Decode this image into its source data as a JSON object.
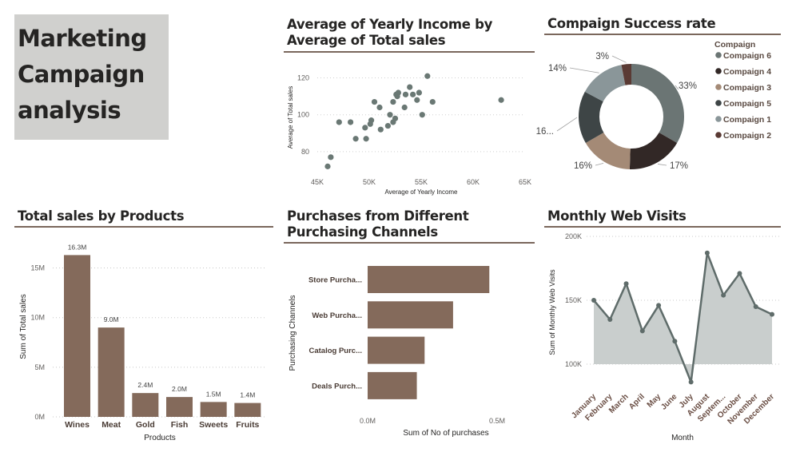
{
  "header": {
    "title": "Marketing Campaign analysis"
  },
  "colors": {
    "bar": "#846a5b",
    "scatter": "#6a7874",
    "area_fill": "#c9cecd",
    "area_line": "#5f6c6a",
    "rule": "#7a675c",
    "donut": [
      "#6b7574",
      "#322826",
      "#a48a76",
      "#3e4546",
      "#8a9699",
      "#5a3a34"
    ]
  },
  "visuals": {
    "income": {
      "title": "Average of Yearly Income by Average of Total sales"
    },
    "campaign": {
      "title": "Compaign Success rate"
    },
    "products": {
      "title": "Total sales by Products"
    },
    "channels": {
      "title": "Purchases from Different Purchasing Channels"
    },
    "web": {
      "title": "Monthly Web Visits"
    }
  },
  "chart_data": [
    {
      "type": "scatter",
      "title": "Average of Yearly Income by Average of Total sales",
      "xlabel": "Average of Yearly Income",
      "ylabel": "Average of Total sales",
      "xlim": [
        45000,
        65000
      ],
      "ylim": [
        70,
        125
      ],
      "x_ticks": [
        "45K",
        "50K",
        "55K",
        "60K",
        "65K"
      ],
      "y_ticks": [
        "80",
        "100",
        "120"
      ],
      "grid": true,
      "points": [
        [
          46000,
          72
        ],
        [
          46300,
          77
        ],
        [
          47100,
          96
        ],
        [
          48200,
          96
        ],
        [
          48700,
          87
        ],
        [
          49600,
          93
        ],
        [
          49700,
          87
        ],
        [
          50100,
          95
        ],
        [
          50200,
          97
        ],
        [
          50500,
          107
        ],
        [
          51100,
          92
        ],
        [
          51000,
          104
        ],
        [
          51800,
          94
        ],
        [
          52000,
          100
        ],
        [
          52300,
          96
        ],
        [
          52300,
          107
        ],
        [
          52500,
          98
        ],
        [
          52600,
          111
        ],
        [
          52700,
          110
        ],
        [
          52800,
          112
        ],
        [
          53400,
          104
        ],
        [
          53500,
          111
        ],
        [
          53900,
          115
        ],
        [
          54200,
          111
        ],
        [
          54600,
          108
        ],
        [
          54800,
          112
        ],
        [
          55100,
          100
        ],
        [
          55600,
          121
        ],
        [
          56100,
          107
        ],
        [
          62700,
          108
        ]
      ]
    },
    {
      "type": "pie",
      "title": "Compaign Success rate",
      "legend_title": "Compaign",
      "legend_position": "right",
      "categories": [
        "Compaign 6",
        "Compaign 4",
        "Compaign 3",
        "Compaign 5",
        "Compaign 1",
        "Compaign 2"
      ],
      "values": [
        33,
        17,
        16,
        16,
        14,
        3
      ],
      "labels": [
        "33%",
        "17%",
        "16%",
        "16...",
        "14%",
        "3%"
      ]
    },
    {
      "type": "bar",
      "title": "Total sales by Products",
      "xlabel": "Products",
      "ylabel": "Sum of Total sales",
      "categories": [
        "Wines",
        "Meat",
        "Gold",
        "Fish",
        "Sweets",
        "Fruits"
      ],
      "values": [
        16.3,
        9.0,
        2.4,
        2.0,
        1.5,
        1.4
      ],
      "value_labels": [
        "16.3M",
        "9.0M",
        "2.4M",
        "2.0M",
        "1.5M",
        "1.4M"
      ],
      "unit": "M",
      "ylim": [
        0,
        17.7
      ],
      "y_ticks": [
        {
          "v": 0,
          "label": "0M"
        },
        {
          "v": 5,
          "label": "5M"
        },
        {
          "v": 10,
          "label": "10M"
        },
        {
          "v": 15,
          "label": "15M"
        }
      ],
      "grid": true
    },
    {
      "type": "bar",
      "orientation": "horizontal",
      "title": "Purchases from Different Purchasing Channels",
      "xlabel": "Sum of No of purchases",
      "ylabel": "Purchasing Channels",
      "categories": [
        "Store Purcha...",
        "Web Purcha...",
        "Catalog Purc...",
        "Deals Purch..."
      ],
      "values": [
        0.47,
        0.33,
        0.22,
        0.19
      ],
      "unit": "M",
      "xlim": [
        0,
        0.5
      ],
      "x_ticks": [
        {
          "v": 0,
          "label": "0.0M"
        },
        {
          "v": 0.5,
          "label": "0.5M"
        }
      ]
    },
    {
      "type": "area",
      "title": "Monthly Web Visits",
      "xlabel": "Month",
      "ylabel": "Sum of Monthly Web Visits",
      "categories": [
        "January",
        "February",
        "March",
        "April",
        "May",
        "June",
        "July",
        "August",
        "Septem...",
        "October",
        "November",
        "December"
      ],
      "values": [
        150000,
        135000,
        163000,
        126000,
        146000,
        118000,
        86000,
        187000,
        154000,
        171000,
        145000,
        139000
      ],
      "ylim": [
        100000,
        200000
      ],
      "y_ticks": [
        {
          "v": 100000,
          "label": "100K"
        },
        {
          "v": 150000,
          "label": "150K"
        },
        {
          "v": 200000,
          "label": "200K"
        }
      ],
      "grid": true
    }
  ]
}
